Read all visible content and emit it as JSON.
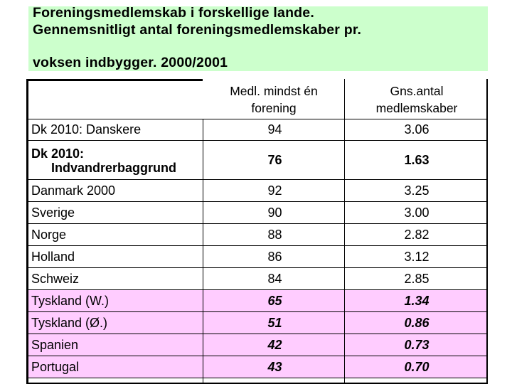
{
  "title": {
    "line1": "Foreningsmedlemskab i forskellige lande.",
    "line2": "Gennemsnitligt antal foreningsmedlemskaber pr.",
    "line3": "voksen indbygger. 2000/2001"
  },
  "table": {
    "headers": {
      "col1_line1": "Medl. mindst én",
      "col1_line2": "forening",
      "col2_line1": "Gns.antal",
      "col2_line2": "medlemskaber"
    },
    "rows": [
      {
        "label": "Dk 2010: Danskere",
        "v1": "94",
        "v2": "3.06",
        "style": "normal"
      },
      {
        "label": "Dk 2010:",
        "label2": "Indvandrerbaggrund",
        "v1": "76",
        "v2": "1.63",
        "style": "bold"
      },
      {
        "label": "Danmark 2000",
        "v1": "92",
        "v2": "3.25",
        "style": "normal"
      },
      {
        "label": "Sverige",
        "v1": "90",
        "v2": "3.00",
        "style": "normal"
      },
      {
        "label": "Norge",
        "v1": "88",
        "v2": "2.82",
        "style": "normal"
      },
      {
        "label": "Holland",
        "v1": "86",
        "v2": "3.12",
        "style": "normal"
      },
      {
        "label": "Schweiz",
        "v1": "84",
        "v2": "2.85",
        "style": "normal"
      },
      {
        "label": "Tyskland (W.)",
        "v1": "65",
        "v2": "1.34",
        "style": "pink"
      },
      {
        "label": "Tyskland (Ø.)",
        "v1": "51",
        "v2": "0.86",
        "style": "pink"
      },
      {
        "label": "Spanien",
        "v1": "42",
        "v2": "0.73",
        "style": "pink"
      },
      {
        "label": "Portugal",
        "v1": "43",
        "v2": "0.70",
        "style": "pink"
      }
    ]
  },
  "colors": {
    "title_bg": "#ccffcc",
    "pink_bg": "#ffccff"
  }
}
